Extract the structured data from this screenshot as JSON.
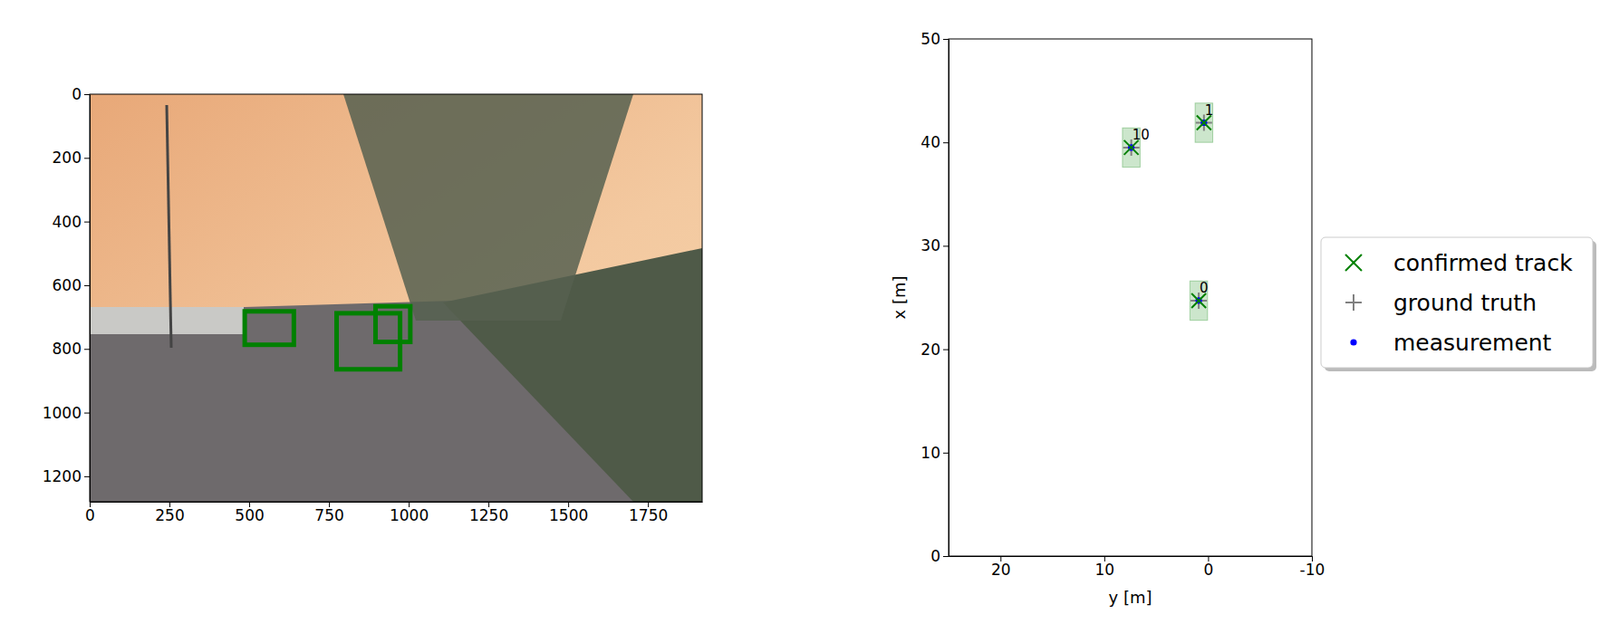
{
  "chart_data": [
    {
      "type": "image",
      "xlim": [
        0,
        1920
      ],
      "xticks": [
        0,
        250,
        500,
        750,
        1000,
        1250,
        1500,
        1750
      ],
      "ylim": [
        1280,
        0
      ],
      "yticks": [
        0,
        200,
        400,
        600,
        800,
        1000,
        1200
      ],
      "color": "green",
      "boxes": [
        [
          486,
          682,
          640,
          787
        ],
        [
          774,
          688,
          973,
          864
        ],
        [
          896,
          666,
          1005,
          778
        ]
      ]
    },
    {
      "type": "scatter",
      "xlabel": "y [m]",
      "ylabel": "x [m]",
      "xlim": [
        25,
        -10
      ],
      "xticks": [
        20,
        10,
        0,
        -10
      ],
      "ylim": [
        0,
        50
      ],
      "yticks": [
        0,
        10,
        20,
        30,
        40,
        50
      ],
      "legend": "right",
      "series": [
        {
          "name": "confirmed track",
          "color": "green",
          "marker": "x",
          "x": [
            0.9,
            0.4,
            7.4
          ],
          "values": [
            24.7,
            41.9,
            39.5
          ],
          "labels": [
            "0",
            "1",
            "10"
          ],
          "widths": [
            1.7,
            1.7,
            1.7
          ],
          "lengths": [
            3.8,
            3.8,
            3.8
          ]
        },
        {
          "name": "ground truth",
          "color": "gray",
          "marker": "plus",
          "x": [
            0.9,
            0.4,
            7.4
          ],
          "values": [
            24.7,
            41.9,
            39.5
          ]
        },
        {
          "name": "measurement",
          "color": "blue",
          "marker": "dot",
          "x": [
            0.9,
            0.4,
            7.4
          ],
          "values": [
            24.7,
            41.9,
            39.5
          ]
        }
      ]
    }
  ]
}
